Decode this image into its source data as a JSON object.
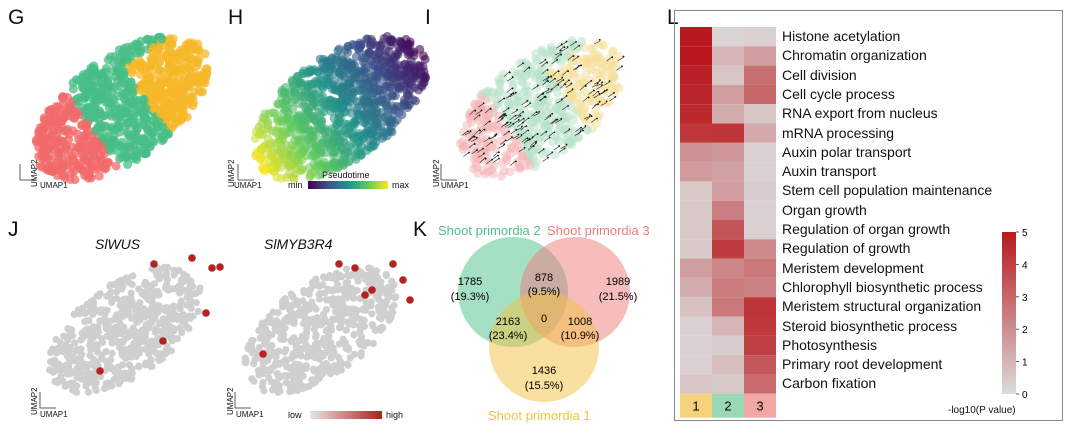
{
  "panels": {
    "G": {
      "letter": "G",
      "x_axis": "UMAP1",
      "y_axis": "UMAP2"
    },
    "H": {
      "letter": "H",
      "x_axis": "UMAP1",
      "y_axis": "UMAP2",
      "colorbar_title": "Pseudotime",
      "min_label": "min",
      "max_label": "max"
    },
    "I": {
      "letter": "I",
      "x_axis": "UMAP1",
      "y_axis": "UMAP2"
    },
    "J": {
      "letter": "J",
      "x_axis": "UMAP1",
      "y_axis": "UMAP2",
      "gene1": "SlWUS",
      "gene2": "SlMYB3R4",
      "low_label": "low",
      "high_label": "high"
    },
    "K": {
      "letter": "K"
    },
    "L": {
      "letter": "L"
    }
  },
  "venn": {
    "sets": [
      {
        "name": "Shoot primordia 2",
        "color": "#4cc08a",
        "only": "1785",
        "only_pct": "(19.3%)"
      },
      {
        "name": "Shoot primordia 3",
        "color": "#f07b7b",
        "only": "1989",
        "only_pct": "(21.5%)"
      },
      {
        "name": "Shoot primordia 1",
        "color": "#f4c242",
        "only": "1436",
        "only_pct": "(15.5%)"
      }
    ],
    "ab": "878",
    "ab_pct": "(9.5%)",
    "ac": "2163",
    "ac_pct": "(23.4%)",
    "bc": "1008",
    "bc_pct": "(10.9%)",
    "abc": "0"
  },
  "chart_data": {
    "type": "heatmap",
    "rows": [
      "Histone acetylation",
      "Chromatin organization",
      "Cell division",
      "Cell cycle process",
      "RNA export from nucleus",
      "mRNA processing",
      "Auxin polar transport",
      "Auxin transport",
      "Stem cell population maintenance",
      "Organ growth",
      "Regulation of organ growth",
      "Regulation of growth",
      "Meristem development",
      "Chlorophyll biosynthetic process",
      "Meristem structural organization",
      "Steroid biosynthetic process",
      "Photosynthesis",
      "Primary root development",
      "Carbon fixation"
    ],
    "columns": [
      "1",
      "2",
      "3"
    ],
    "column_colors": [
      "#f6d27c",
      "#9bd8b6",
      "#f4a7a7"
    ],
    "values": [
      [
        5.0,
        0.2,
        0.3
      ],
      [
        5.0,
        1.0,
        1.6
      ],
      [
        4.8,
        0.6,
        2.8
      ],
      [
        4.7,
        1.6,
        3.0
      ],
      [
        4.6,
        1.2,
        0.6
      ],
      [
        4.2,
        4.3,
        1.3
      ],
      [
        1.9,
        1.8,
        0.3
      ],
      [
        1.7,
        1.5,
        0.3
      ],
      [
        0.5,
        1.6,
        0.4
      ],
      [
        0.5,
        2.4,
        0.3
      ],
      [
        0.5,
        3.5,
        0.3
      ],
      [
        0.5,
        4.1,
        2.1
      ],
      [
        1.6,
        2.2,
        2.6
      ],
      [
        1.2,
        2.5,
        2.3
      ],
      [
        0.7,
        2.6,
        4.3
      ],
      [
        0.3,
        1.0,
        4.2
      ],
      [
        0.3,
        0.4,
        4.0
      ],
      [
        0.3,
        0.8,
        3.4
      ],
      [
        0.6,
        0.5,
        2.9
      ]
    ],
    "colorbar_ticks": [
      "5",
      "4",
      "3",
      "2",
      "1",
      "0"
    ],
    "colorbar_range": [
      0,
      5
    ],
    "colorbar_title": "-log10(P value)",
    "colors": {
      "high": "#b8191e",
      "low": "#dcdcdc"
    }
  }
}
